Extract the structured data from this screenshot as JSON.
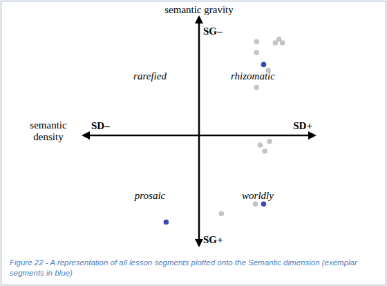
{
  "chart_data": {
    "type": "scatter",
    "caption": "Figure 22 - A representation of all lesson segments plotted onto the Semantic dimension (exemplar segments in blue)",
    "xlabel": "semantic density",
    "ylabel": "semantic gravity",
    "x_poles": [
      "SD–",
      "SD+"
    ],
    "y_poles": [
      "SG+",
      "SG–"
    ],
    "quadrant_labels": {
      "top_left": "rarefied",
      "top_right": "rhizomatic",
      "bottom_left": "prosaic",
      "bottom_right": "worldly"
    },
    "xlim": [
      -1,
      1
    ],
    "ylim": [
      -0.93,
      1
    ],
    "grid": false,
    "tick_labels": false,
    "marker": "circle",
    "series": [
      {
        "color": "#c4c4c4",
        "x": [
          0.49,
          0.68,
          0.65,
          0.71,
          0.49,
          0.59,
          0.49,
          0.52,
          0.6,
          0.56,
          0.19,
          0.48
        ],
        "values": [
          0.78,
          0.8,
          0.77,
          0.77,
          0.69,
          0.54,
          0.4,
          -0.08,
          -0.05,
          -0.13,
          -0.65,
          -0.57
        ]
      },
      {
        "color": "#3b4bb5",
        "x": [
          0.55,
          0.55,
          -0.28
        ],
        "values": [
          0.59,
          -0.57,
          -0.72
        ]
      }
    ]
  }
}
